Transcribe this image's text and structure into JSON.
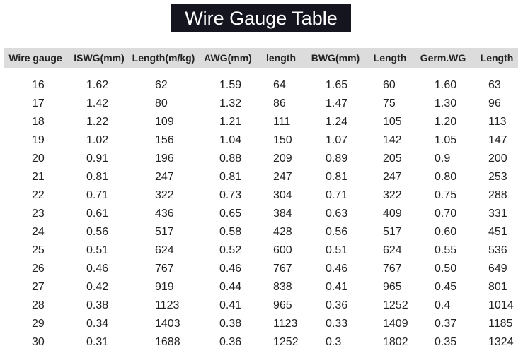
{
  "header": {
    "title": "Wire Gauge Table"
  },
  "table": {
    "columns": [
      "Wire gauge",
      "ISWG(mm)",
      "Length(m/kg)",
      "AWG(mm)",
      "length",
      "BWG(mm)",
      "Length",
      "Germ.WG",
      "Length"
    ],
    "rows": [
      [
        "16",
        "1.62",
        "62",
        "1.59",
        "64",
        "1.65",
        "60",
        "1.60",
        "63"
      ],
      [
        "17",
        "1.42",
        "80",
        "1.32",
        "86",
        "1.47",
        "75",
        "1.30",
        "96"
      ],
      [
        "18",
        "1.22",
        "109",
        "1.21",
        "111",
        "1.24",
        "105",
        "1.20",
        "113"
      ],
      [
        "19",
        "1.02",
        "156",
        "1.04",
        "150",
        "1.07",
        "142",
        "1.05",
        "147"
      ],
      [
        "20",
        "0.91",
        "196",
        "0.88",
        "209",
        "0.89",
        "205",
        "0.9",
        "200"
      ],
      [
        "21",
        "0.81",
        "247",
        "0.81",
        "247",
        "0.81",
        "247",
        "0.80",
        "253"
      ],
      [
        "22",
        "0.71",
        "322",
        "0.73",
        "304",
        "0.71",
        "322",
        "0.75",
        "288"
      ],
      [
        "23",
        "0.61",
        "436",
        "0.65",
        "384",
        "0.63",
        "409",
        "0.70",
        "331"
      ],
      [
        "24",
        "0.56",
        "517",
        "0.58",
        "428",
        "0.56",
        "517",
        "0.60",
        "451"
      ],
      [
        "25",
        "0.51",
        "624",
        "0.52",
        "600",
        "0.51",
        "624",
        "0.55",
        "536"
      ],
      [
        "26",
        "0.46",
        "767",
        "0.46",
        "767",
        "0.46",
        "767",
        "0.50",
        "649"
      ],
      [
        "27",
        "0.42",
        "919",
        "0.44",
        "838",
        "0.41",
        "965",
        "0.45",
        "801"
      ],
      [
        "28",
        "0.38",
        "1123",
        "0.41",
        "965",
        "0.36",
        "1252",
        "0.4",
        "1014"
      ],
      [
        "29",
        "0.34",
        "1403",
        "0.38",
        "1123",
        "0.33",
        "1409",
        "0.37",
        "1185"
      ],
      [
        "30",
        "0.31",
        "1688",
        "0.36",
        "1252",
        "0.3",
        "1802",
        "0.35",
        "1324"
      ]
    ]
  }
}
